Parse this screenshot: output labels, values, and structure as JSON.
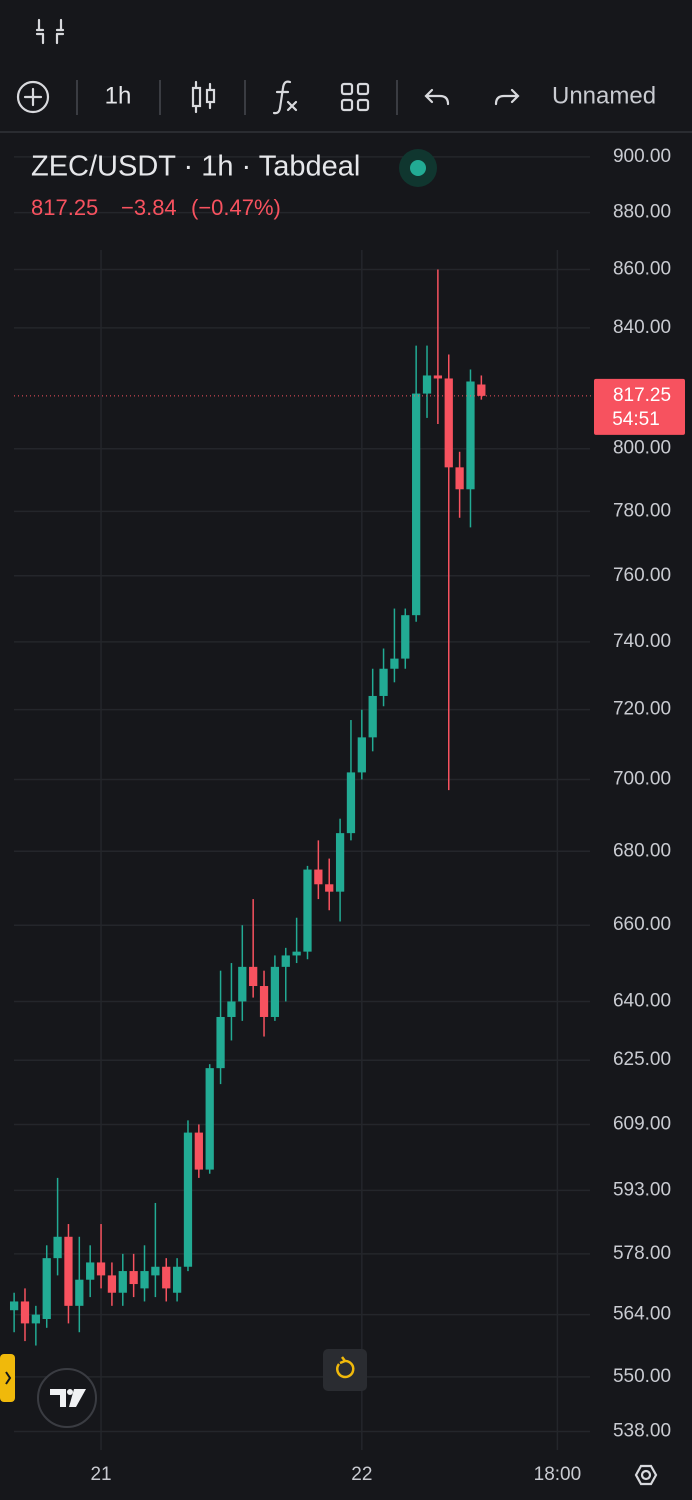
{
  "toolbar": {
    "interval": "1h",
    "layout_name": "Unnamed"
  },
  "chart_data": {
    "type": "candlestick",
    "title": "ZEC/USDT · 1h · Tabdeal",
    "last_price": 817.25,
    "change": "−3.84",
    "change_percent": "(−0.47%)",
    "countdown": "54:51",
    "up_color": "#22ab94",
    "down_color": "#f7525f",
    "log_scale": true,
    "grid": true,
    "x": [
      -8,
      -7,
      -6,
      -5,
      -4,
      -3,
      -2,
      -1,
      0,
      1,
      2,
      3,
      4,
      5,
      6,
      7,
      8,
      9,
      10,
      11,
      12,
      13,
      14,
      15,
      16,
      17,
      18,
      19,
      20,
      21,
      22,
      23,
      24,
      25,
      26,
      27,
      28,
      29,
      30,
      31,
      32,
      33,
      34,
      35
    ],
    "xlim": [
      -9.3,
      45
    ],
    "xticks": [
      {
        "value": 0,
        "label": "21"
      },
      {
        "value": 24,
        "label": "22"
      },
      {
        "value": 42,
        "label": "18:00"
      }
    ],
    "series": [
      {
        "open": [
          565,
          567,
          562,
          563,
          577,
          582,
          566,
          572,
          576,
          573,
          569,
          574,
          570,
          573,
          575,
          569,
          575,
          607,
          598,
          623,
          636,
          640,
          649,
          644,
          636,
          649,
          652,
          653,
          675,
          671,
          669,
          685,
          702,
          712,
          724,
          732,
          735,
          748,
          818,
          824,
          823,
          794,
          787,
          821
        ],
        "high": [
          569,
          570,
          566,
          580,
          596,
          585,
          582,
          580,
          585,
          576,
          578,
          578,
          580,
          590,
          577,
          577,
          610,
          609,
          624,
          648,
          650,
          660,
          667,
          648,
          652,
          654,
          662,
          676,
          683,
          678,
          689,
          717,
          720,
          732,
          738,
          750,
          750,
          834,
          834,
          860,
          831,
          799,
          826,
          824
        ],
        "low": [
          560,
          558,
          557,
          561,
          573,
          562,
          560,
          568,
          570,
          566,
          566,
          568,
          567,
          568,
          567,
          567,
          574,
          596,
          597,
          619,
          630,
          635,
          641,
          631,
          635,
          640,
          650,
          651,
          667,
          664,
          661,
          683,
          700,
          708,
          721,
          728,
          732,
          746,
          810,
          808,
          697,
          778,
          775,
          816
        ],
        "close": [
          567,
          562,
          564,
          577,
          582,
          566,
          572,
          576,
          573,
          569,
          574,
          571,
          574,
          575,
          570,
          575,
          607,
          598,
          623,
          636,
          640,
          649,
          644,
          636,
          649,
          652,
          653,
          675,
          671,
          669,
          685,
          702,
          712,
          724,
          732,
          735,
          748,
          818,
          824,
          823,
          794,
          787,
          822,
          817.25
        ]
      }
    ],
    "ylim": [
      534,
      908
    ],
    "yticks": [
      {
        "value": 538,
        "label": "538.00"
      },
      {
        "value": 550,
        "label": "550.00"
      },
      {
        "value": 564,
        "label": "564.00"
      },
      {
        "value": 578,
        "label": "578.00"
      },
      {
        "value": 593,
        "label": "593.00"
      },
      {
        "value": 609,
        "label": "609.00"
      },
      {
        "value": 625,
        "label": "625.00"
      },
      {
        "value": 640,
        "label": "640.00"
      },
      {
        "value": 660,
        "label": "660.00"
      },
      {
        "value": 680,
        "label": "680.00"
      },
      {
        "value": 700,
        "label": "700.00"
      },
      {
        "value": 720,
        "label": "720.00"
      },
      {
        "value": 740,
        "label": "740.00"
      },
      {
        "value": 760,
        "label": "760.00"
      },
      {
        "value": 780,
        "label": "780.00"
      },
      {
        "value": 800,
        "label": "800.00"
      },
      {
        "value": 840,
        "label": "840.00"
      },
      {
        "value": 860,
        "label": "860.00"
      },
      {
        "value": 880,
        "label": "880.00"
      },
      {
        "value": 900,
        "label": "900.00"
      }
    ]
  }
}
